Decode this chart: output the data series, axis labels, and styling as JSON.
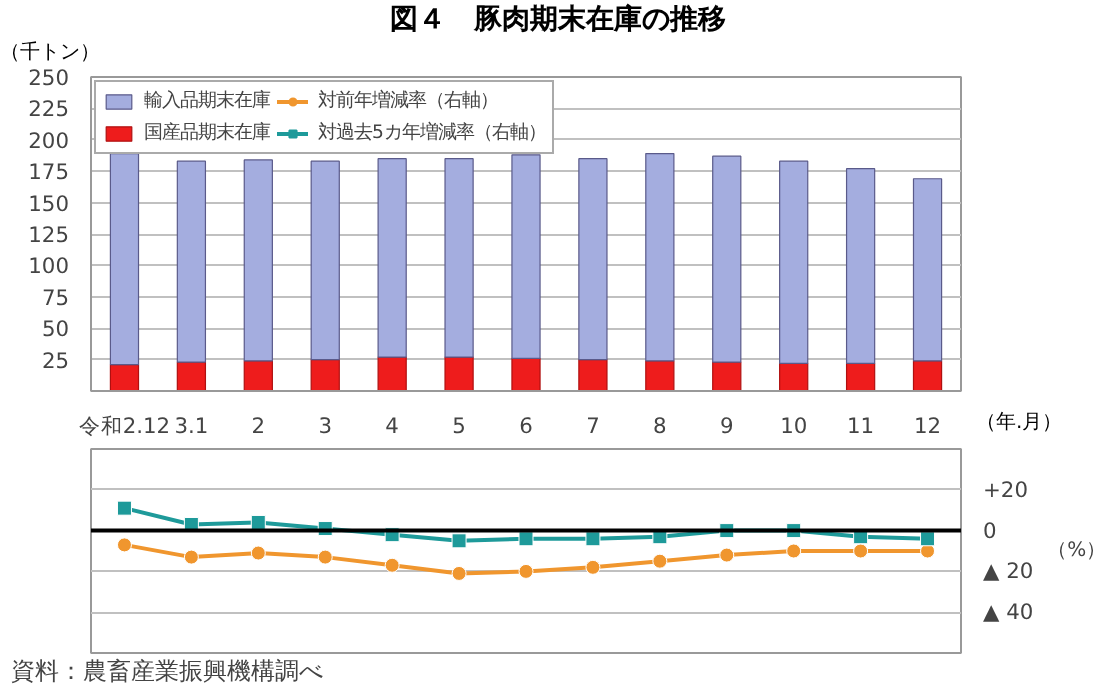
{
  "chart_data": [
    {
      "type": "bar",
      "title": "図４　豚肉期末在庫の推移",
      "ylabel": "（千トン）",
      "xlabel": "（年.月）",
      "stacked": true,
      "categories": [
        "令和2.12",
        "3.1",
        "2",
        "3",
        "4",
        "5",
        "6",
        "7",
        "8",
        "9",
        "10",
        "11",
        "12"
      ],
      "series": [
        {
          "name": "国産品期末在庫",
          "color": "#ee1c1c",
          "values": [
            21,
            23,
            24,
            25,
            27,
            27,
            26,
            25,
            24,
            23,
            22,
            22,
            24
          ]
        },
        {
          "name": "輸入品期末在庫",
          "color": "#a4addf",
          "values": [
            168,
            160,
            160,
            158,
            158,
            158,
            162,
            160,
            165,
            164,
            161,
            155,
            145
          ]
        }
      ],
      "ylim": [
        0,
        250
      ],
      "yticks": [
        25,
        50,
        75,
        100,
        125,
        150,
        175,
        200,
        225,
        250
      ],
      "grid": "y",
      "legend": "top left",
      "annotations": [
        "資料：農畜産業振興機構調べ"
      ]
    },
    {
      "type": "line",
      "ylabel": "（%）",
      "series": [
        {
          "name": "対前年増減率（右軸）",
          "color": "#f0962e",
          "marker": "circle",
          "values": [
            -7,
            -13,
            -11,
            -13,
            -17,
            -21,
            -20,
            -18,
            -15,
            -12,
            -10,
            -10,
            -10
          ]
        },
        {
          "name": "対過去5カ年増減率（右軸）",
          "color": "#1e9a9a",
          "marker": "square",
          "values": [
            11,
            3,
            4,
            1,
            -2,
            -5,
            -4,
            -4,
            -3,
            0,
            0,
            -3,
            -4
          ]
        }
      ],
      "ylim": [
        -60,
        40
      ],
      "yticks": [
        {
          "value": 20,
          "label": "+20"
        },
        0,
        {
          "value": -20,
          "label": "▲ 20"
        },
        {
          "value": -40,
          "label": "▲ 40"
        }
      ],
      "grid": "y",
      "tick_labels": "y",
      "legend": "top left",
      "ref_lines": [
        {
          "axis": "y",
          "value": 0,
          "color": "#000000"
        }
      ]
    }
  ]
}
